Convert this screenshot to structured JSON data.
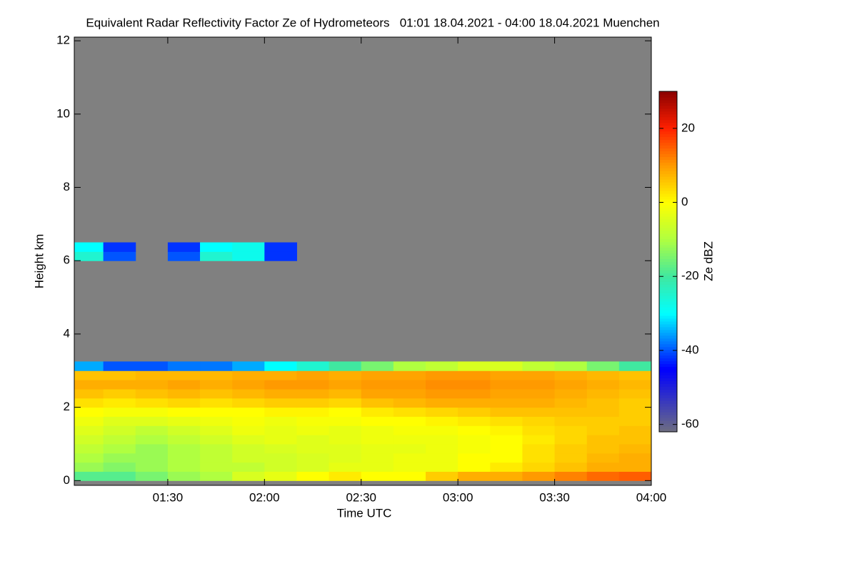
{
  "chart_data": {
    "type": "heatmap",
    "title": "Equivalent Radar Reflectivity Factor Ze of Hydrometeors   01:01 18.04.2021 - 04:00 18.04.2021 Muenchen",
    "xlabel": "Time UTC",
    "ylabel": "Height km",
    "colorbar_label": "Ze dBZ",
    "xlim": [
      61,
      240
    ],
    "xticks": [
      {
        "value": 90,
        "label": "01:30"
      },
      {
        "value": 120,
        "label": "02:00"
      },
      {
        "value": 150,
        "label": "02:30"
      },
      {
        "value": 180,
        "label": "03:00"
      },
      {
        "value": 210,
        "label": "03:30"
      },
      {
        "value": 240,
        "label": "04:00"
      }
    ],
    "ylim": [
      -0.13,
      12.1
    ],
    "yticks": [
      0,
      2,
      4,
      6,
      8,
      10,
      12
    ],
    "zlim": [
      -62,
      30
    ],
    "zticks": [
      -60,
      -40,
      -20,
      0,
      20
    ],
    "background_color": "#808080",
    "colormap": [
      [
        -62,
        "#6e6e80"
      ],
      [
        -45,
        "#0000ff"
      ],
      [
        -30,
        "#00ffff"
      ],
      [
        -20,
        "#40e8a0"
      ],
      [
        -10,
        "#b0ff40"
      ],
      [
        0,
        "#ffff00"
      ],
      [
        10,
        "#ff9a00"
      ],
      [
        20,
        "#ff2000"
      ],
      [
        30,
        "#8b0000"
      ]
    ],
    "x_edges": [
      60,
      70,
      80,
      90,
      100,
      110,
      120,
      130,
      140,
      150,
      160,
      170,
      180,
      190,
      200,
      210,
      220,
      230,
      240
    ],
    "y_edges": [
      0,
      0.25,
      0.5,
      0.75,
      1.0,
      1.25,
      1.5,
      1.75,
      2.0,
      2.25,
      2.5,
      2.75,
      3.0,
      3.25,
      6.0,
      6.25,
      6.5
    ],
    "z": [
      [
        -18,
        -18,
        -15,
        -12,
        -10,
        -5,
        -3,
        0,
        2,
        0,
        0,
        5,
        8,
        8,
        10,
        12,
        14,
        15
      ],
      [
        -12,
        -14,
        -12,
        -10,
        -8,
        -8,
        -6,
        -5,
        -3,
        -3,
        -2,
        -2,
        0,
        2,
        4,
        6,
        8,
        8
      ],
      [
        -10,
        -12,
        -12,
        -10,
        -8,
        -6,
        -6,
        -5,
        -4,
        -3,
        -2,
        -2,
        0,
        0,
        3,
        5,
        7,
        8
      ],
      [
        -8,
        -10,
        -12,
        -10,
        -8,
        -6,
        -5,
        -4,
        -4,
        -3,
        -3,
        -2,
        -1,
        0,
        3,
        5,
        6,
        7
      ],
      [
        -6,
        -8,
        -10,
        -8,
        -6,
        -4,
        -3,
        -4,
        -3,
        -2,
        -2,
        -2,
        -1,
        0,
        2,
        4,
        6,
        6
      ],
      [
        -4,
        -6,
        -8,
        -6,
        -4,
        -2,
        -3,
        -2,
        -3,
        -2,
        -1,
        -1,
        0,
        1,
        3,
        4,
        5,
        6
      ],
      [
        -2,
        -4,
        -4,
        -3,
        -2,
        -1,
        -2,
        -1,
        -1,
        0,
        0,
        1,
        2,
        3,
        4,
        5,
        5,
        5
      ],
      [
        0,
        -1,
        -1,
        0,
        0,
        0,
        1,
        1,
        0,
        2,
        3,
        4,
        5,
        6,
        6,
        6,
        6,
        5
      ],
      [
        3,
        2,
        3,
        4,
        3,
        4,
        5,
        5,
        4,
        6,
        7,
        8,
        8,
        8,
        8,
        7,
        6,
        5
      ],
      [
        6,
        5,
        6,
        7,
        6,
        7,
        8,
        8,
        7,
        9,
        9,
        10,
        10,
        9,
        9,
        8,
        7,
        6
      ],
      [
        8,
        8,
        8,
        9,
        8,
        9,
        10,
        10,
        9,
        10,
        10,
        11,
        11,
        10,
        10,
        9,
        8,
        7
      ],
      [
        6,
        6,
        7,
        7,
        7,
        8,
        8,
        9,
        8,
        9,
        9,
        10,
        10,
        9,
        9,
        8,
        7,
        6
      ],
      [
        -35,
        -40,
        -40,
        -38,
        -38,
        -35,
        -30,
        -25,
        -20,
        -15,
        -10,
        -8,
        -5,
        -5,
        -8,
        -10,
        -15,
        -20
      ],
      [
        null,
        null,
        null,
        null,
        null,
        null,
        null,
        null,
        null,
        null,
        null,
        null,
        null,
        null,
        null,
        null,
        null,
        null
      ],
      [
        -25,
        -40,
        null,
        -40,
        -25,
        -28,
        -42,
        null,
        null,
        null,
        null,
        null,
        null,
        null,
        null,
        null,
        null,
        null
      ],
      [
        -30,
        -42,
        null,
        -42,
        -30,
        -28,
        -42,
        null,
        null,
        null,
        null,
        null,
        null,
        null,
        null,
        null,
        null,
        null
      ]
    ]
  }
}
